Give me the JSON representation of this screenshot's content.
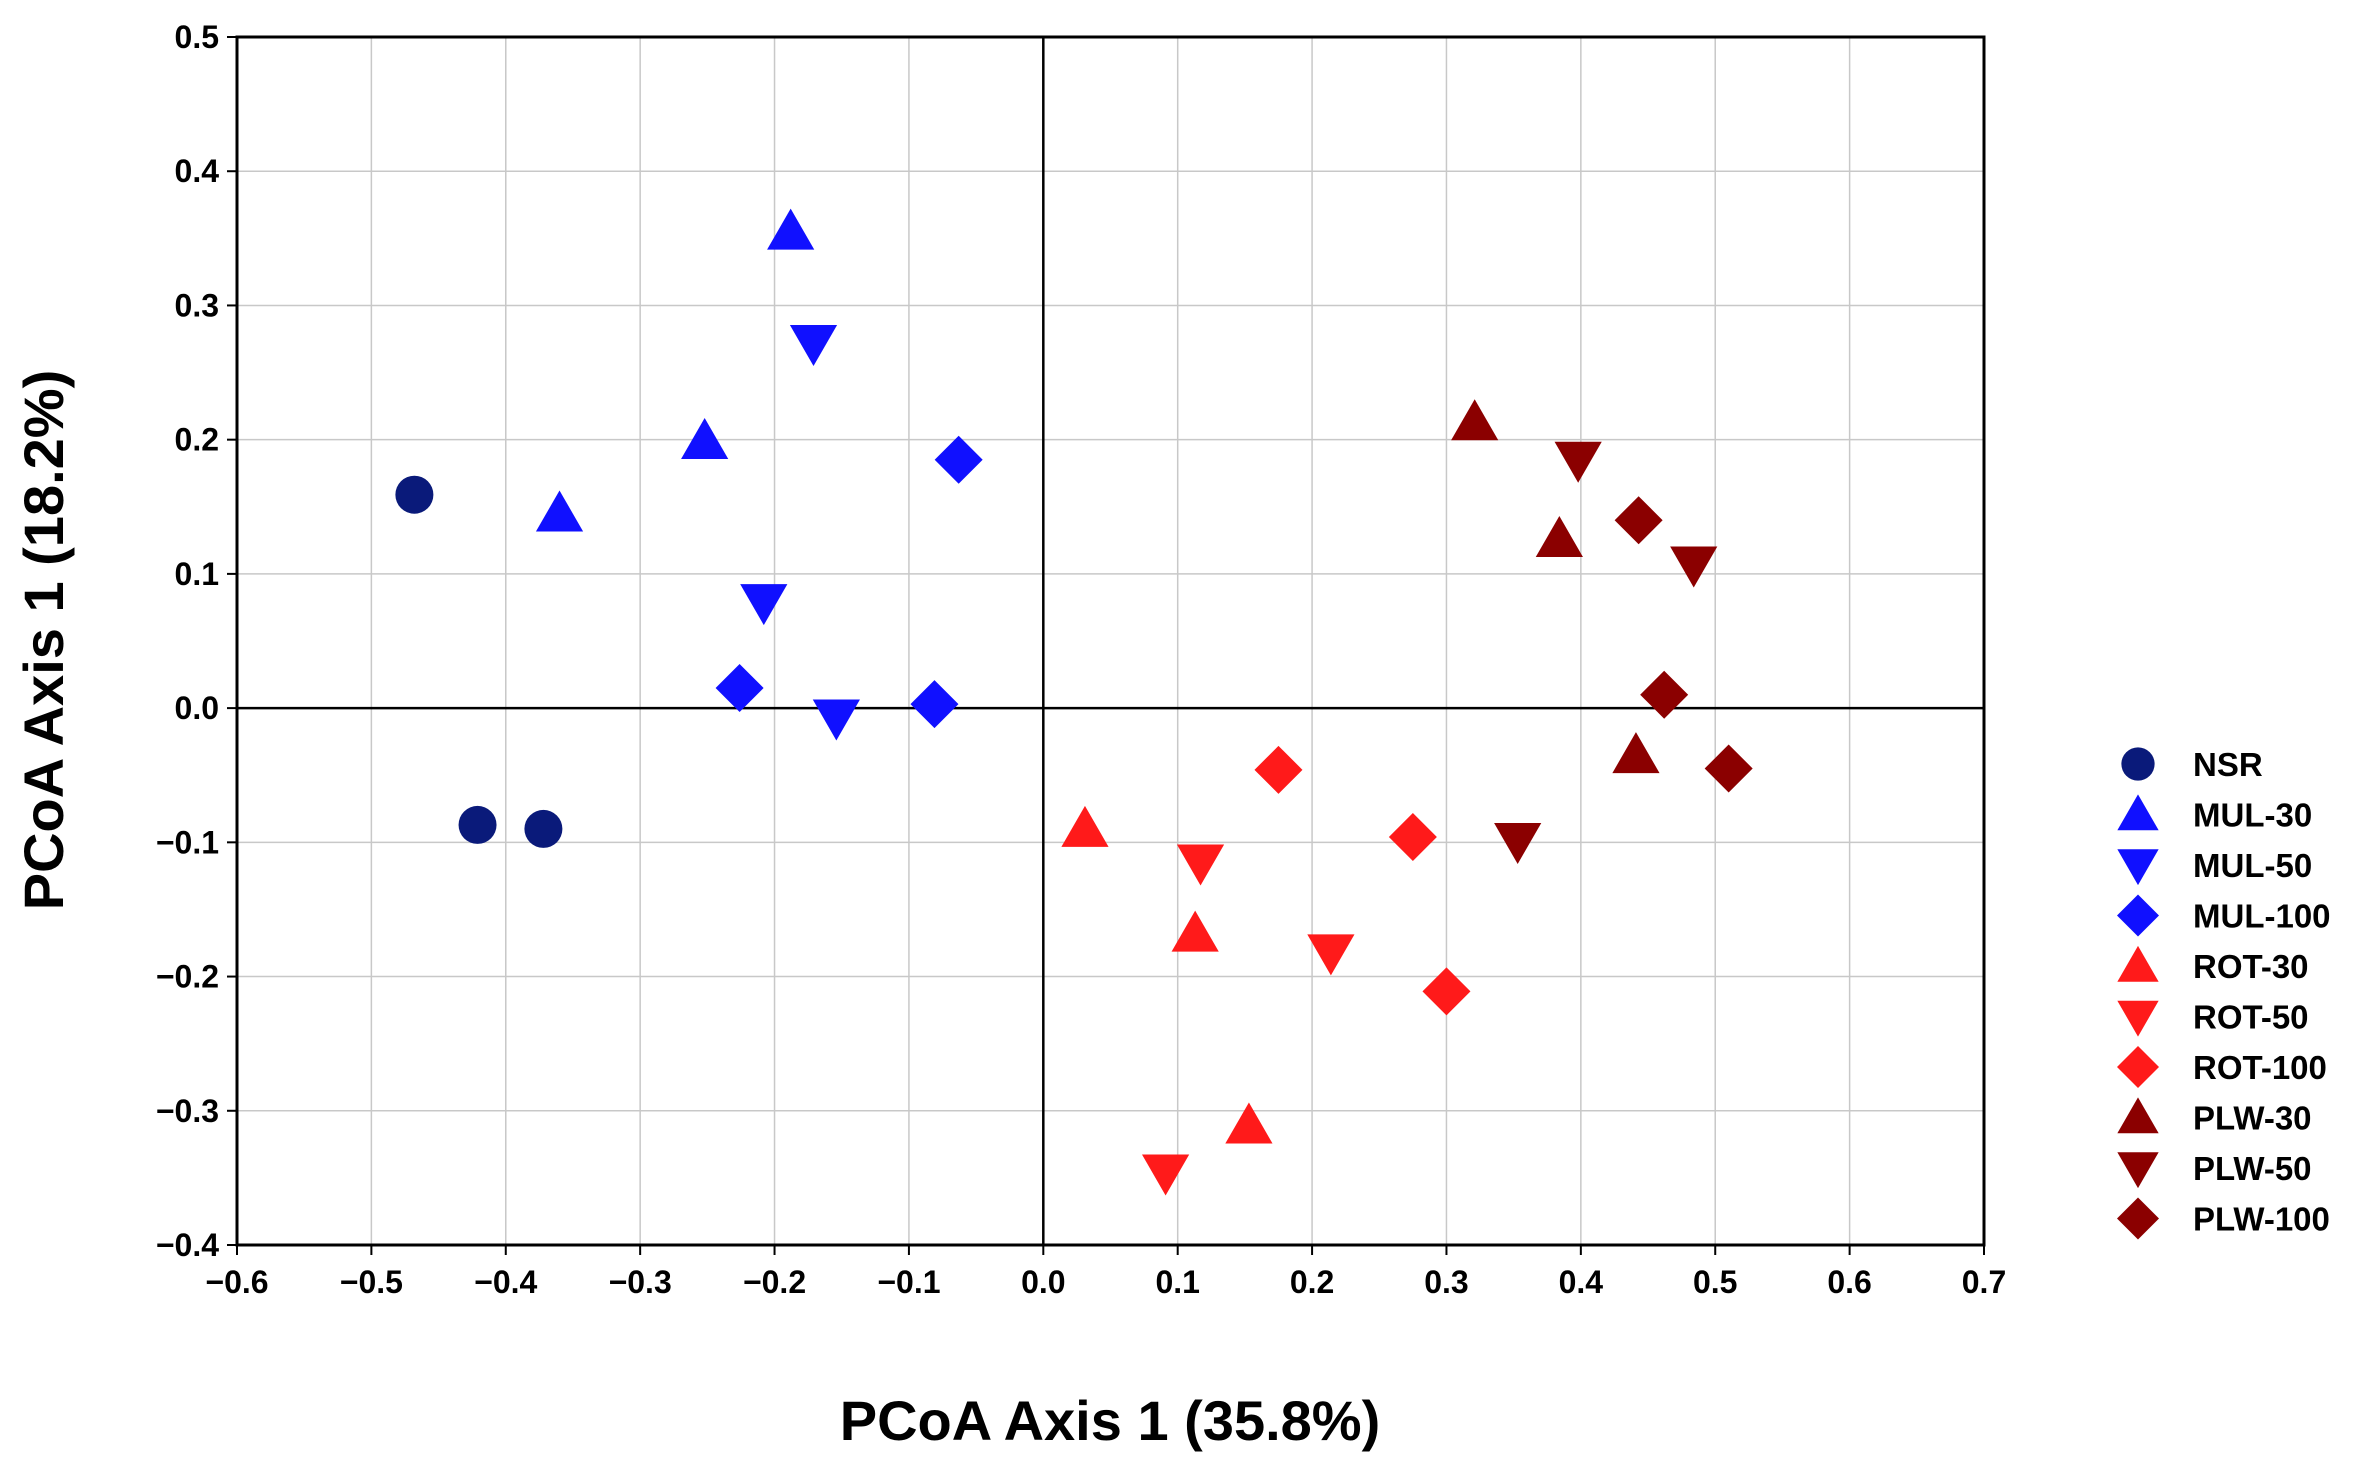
{
  "chart_data": {
    "type": "scatter",
    "title": "",
    "xlabel": "PCoA Axis 1 (35.8%)",
    "ylabel": "PCoA Axis 1 (18.2%)",
    "xlim": [
      -0.6,
      0.7
    ],
    "ylim": [
      -0.4,
      0.5
    ],
    "xticks": [
      "−0.6",
      "−0.5",
      "−0.4",
      "−0.3",
      "−0.2",
      "−0.1",
      "0.0",
      "0.1",
      "0.2",
      "0.3",
      "0.4",
      "0.5",
      "0.6",
      "0.7"
    ],
    "xtick_values": [
      -0.6,
      -0.5,
      -0.4,
      -0.3,
      -0.2,
      -0.1,
      0.0,
      0.1,
      0.2,
      0.3,
      0.4,
      0.5,
      0.6,
      0.7
    ],
    "yticks": [
      "−0.4",
      "−0.3",
      "−0.2",
      "−0.1",
      "0.0",
      "0.1",
      "0.2",
      "0.3",
      "0.4",
      "0.5"
    ],
    "ytick_values": [
      -0.4,
      -0.3,
      -0.2,
      -0.1,
      0.0,
      0.1,
      0.2,
      0.3,
      0.4,
      0.5
    ],
    "grid": true,
    "zero_lines": true,
    "legend_position": "right",
    "series": [
      {
        "name": "NSR",
        "marker": "circle",
        "color": "#0a1a7a",
        "x": [
          -0.468,
          -0.421,
          -0.372
        ],
        "y": [
          0.159,
          -0.087,
          -0.09
        ]
      },
      {
        "name": "MUL-30",
        "marker": "triangle-up",
        "color": "#1010ff",
        "x": [
          -0.188,
          -0.252,
          -0.36
        ],
        "y": [
          0.355,
          0.199,
          0.145
        ]
      },
      {
        "name": "MUL-50",
        "marker": "triangle-down",
        "color": "#1010ff",
        "x": [
          -0.171,
          -0.208,
          -0.154
        ],
        "y": [
          0.272,
          0.079,
          -0.007
        ]
      },
      {
        "name": "MUL-100",
        "marker": "diamond",
        "color": "#1010ff",
        "x": [
          -0.063,
          -0.226,
          -0.081
        ],
        "y": [
          0.185,
          0.015,
          0.003
        ]
      },
      {
        "name": "ROT-30",
        "marker": "triangle-up",
        "color": "#ff1a1a",
        "x": [
          0.031,
          0.113,
          0.153
        ],
        "y": [
          -0.09,
          -0.168,
          -0.311
        ]
      },
      {
        "name": "ROT-50",
        "marker": "triangle-down",
        "color": "#ff1a1a",
        "x": [
          0.117,
          0.214,
          0.091
        ],
        "y": [
          -0.115,
          -0.182,
          -0.346
        ]
      },
      {
        "name": "ROT-100",
        "marker": "diamond",
        "color": "#ff1a1a",
        "x": [
          0.175,
          0.275,
          0.3
        ],
        "y": [
          -0.046,
          -0.096,
          -0.211
        ]
      },
      {
        "name": "PLW-30",
        "marker": "triangle-up",
        "color": "#8b0000",
        "x": [
          0.321,
          0.384,
          0.441
        ],
        "y": [
          0.213,
          0.126,
          -0.035
        ]
      },
      {
        "name": "PLW-50",
        "marker": "triangle-down",
        "color": "#8b0000",
        "x": [
          0.398,
          0.484,
          0.353
        ],
        "y": [
          0.185,
          0.107,
          -0.099
        ]
      },
      {
        "name": "PLW-100",
        "marker": "diamond",
        "color": "#8b0000",
        "x": [
          0.443,
          0.462,
          0.51
        ],
        "y": [
          0.14,
          0.01,
          -0.045
        ]
      }
    ]
  }
}
